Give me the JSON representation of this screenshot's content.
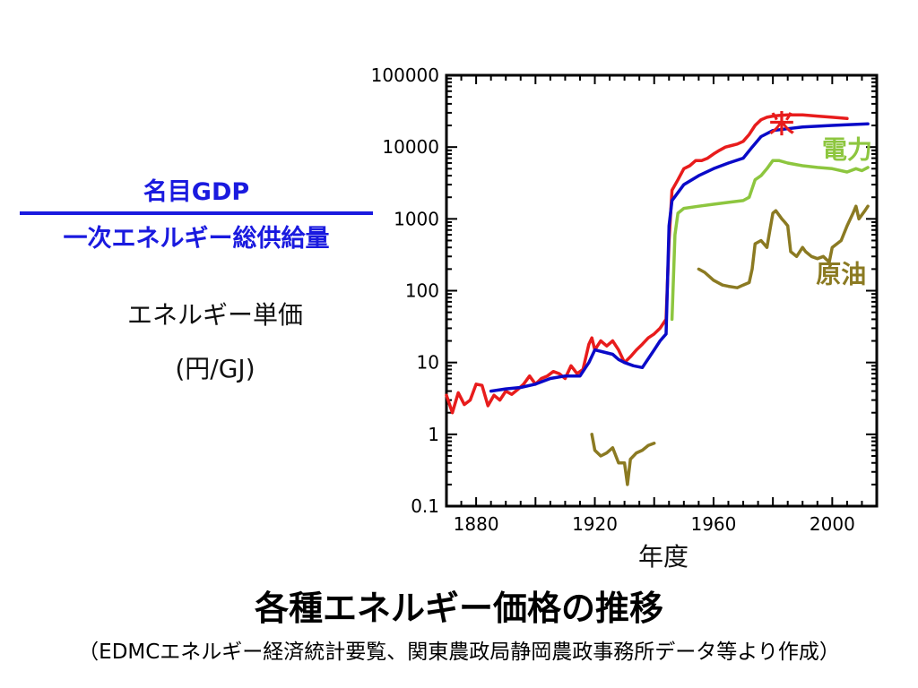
{
  "chart_data": {
    "type": "line",
    "title": "各種エネルギー価格の推移",
    "source_note": "（EDMCエネルギー経済統計要覧、関東農政局静岡農政事務所データ等より作成）",
    "ylabel_fraction": {
      "numerator": "名目GDP",
      "denominator": "一次エネルギー総供給量"
    },
    "ylabel": "エネルギー単価",
    "ylabel_unit": "(円/GJ)",
    "xlabel": "年度",
    "yscale": "log",
    "xlim": [
      1870,
      2015
    ],
    "ylim": [
      0.1,
      100000
    ],
    "x_ticks": [
      1880,
      1920,
      1960,
      2000
    ],
    "y_ticks": [
      0.1,
      1,
      10,
      100,
      1000,
      10000,
      100000
    ],
    "y_tick_labels": [
      "0.1",
      "1",
      "10",
      "100",
      "1000",
      "10000",
      "100000"
    ],
    "series": [
      {
        "name": "米",
        "color": "#e81c1c",
        "points": [
          [
            1870,
            3.5
          ],
          [
            1872,
            2.0
          ],
          [
            1874,
            3.8
          ],
          [
            1876,
            2.6
          ],
          [
            1878,
            3.0
          ],
          [
            1880,
            5.0
          ],
          [
            1882,
            4.8
          ],
          [
            1884,
            2.5
          ],
          [
            1886,
            3.5
          ],
          [
            1888,
            3.0
          ],
          [
            1890,
            4.0
          ],
          [
            1892,
            3.6
          ],
          [
            1894,
            4.2
          ],
          [
            1896,
            5.0
          ],
          [
            1898,
            6.5
          ],
          [
            1900,
            5.0
          ],
          [
            1902,
            6.0
          ],
          [
            1904,
            6.5
          ],
          [
            1906,
            7.5
          ],
          [
            1908,
            7.0
          ],
          [
            1910,
            6.0
          ],
          [
            1912,
            9.0
          ],
          [
            1914,
            7.0
          ],
          [
            1916,
            8.0
          ],
          [
            1918,
            18
          ],
          [
            1919,
            22
          ],
          [
            1920,
            15
          ],
          [
            1922,
            20
          ],
          [
            1924,
            17
          ],
          [
            1926,
            20
          ],
          [
            1928,
            15
          ],
          [
            1930,
            10
          ],
          [
            1932,
            12
          ],
          [
            1934,
            15
          ],
          [
            1936,
            18
          ],
          [
            1938,
            22
          ],
          [
            1940,
            25
          ],
          [
            1942,
            30
          ],
          [
            1944,
            40
          ],
          [
            1945,
            500
          ],
          [
            1946,
            2500
          ],
          [
            1948,
            3500
          ],
          [
            1950,
            5000
          ],
          [
            1952,
            5500
          ],
          [
            1954,
            6500
          ],
          [
            1956,
            6500
          ],
          [
            1958,
            7000
          ],
          [
            1960,
            8000
          ],
          [
            1962,
            9000
          ],
          [
            1964,
            10000
          ],
          [
            1966,
            10500
          ],
          [
            1968,
            11000
          ],
          [
            1970,
            12000
          ],
          [
            1972,
            15000
          ],
          [
            1974,
            20000
          ],
          [
            1976,
            24000
          ],
          [
            1978,
            26000
          ],
          [
            1980,
            27000
          ],
          [
            1982,
            27500
          ],
          [
            1985,
            28000
          ],
          [
            1990,
            28000
          ],
          [
            1995,
            27000
          ],
          [
            2000,
            26000
          ],
          [
            2005,
            25000
          ]
        ]
      },
      {
        "name": "",
        "color": "#0a0ac8",
        "points": [
          [
            1885,
            4.0
          ],
          [
            1890,
            4.3
          ],
          [
            1895,
            4.5
          ],
          [
            1900,
            5.0
          ],
          [
            1905,
            6.0
          ],
          [
            1910,
            6.5
          ],
          [
            1915,
            6.5
          ],
          [
            1918,
            10
          ],
          [
            1920,
            15
          ],
          [
            1923,
            14
          ],
          [
            1926,
            13
          ],
          [
            1928,
            11
          ],
          [
            1930,
            10
          ],
          [
            1933,
            9
          ],
          [
            1936,
            8.5
          ],
          [
            1940,
            15
          ],
          [
            1942,
            20
          ],
          [
            1944,
            25
          ],
          [
            1945,
            800
          ],
          [
            1946,
            1800
          ],
          [
            1950,
            3000
          ],
          [
            1955,
            4000
          ],
          [
            1960,
            5000
          ],
          [
            1965,
            6000
          ],
          [
            1970,
            7000
          ],
          [
            1973,
            10000
          ],
          [
            1976,
            14000
          ],
          [
            1980,
            17000
          ],
          [
            1985,
            18000
          ],
          [
            1990,
            19000
          ],
          [
            1995,
            19500
          ],
          [
            2000,
            20000
          ],
          [
            2005,
            20500
          ],
          [
            2012,
            21000
          ]
        ]
      },
      {
        "name": "電力",
        "color": "#8dc63f",
        "points": [
          [
            1946,
            40
          ],
          [
            1947,
            600
          ],
          [
            1948,
            1200
          ],
          [
            1950,
            1400
          ],
          [
            1955,
            1500
          ],
          [
            1960,
            1600
          ],
          [
            1965,
            1700
          ],
          [
            1970,
            1800
          ],
          [
            1972,
            2000
          ],
          [
            1974,
            3500
          ],
          [
            1976,
            4000
          ],
          [
            1978,
            5000
          ],
          [
            1980,
            6500
          ],
          [
            1982,
            6500
          ],
          [
            1985,
            6000
          ],
          [
            1990,
            5500
          ],
          [
            1995,
            5200
          ],
          [
            2000,
            5000
          ],
          [
            2005,
            4500
          ],
          [
            2008,
            5000
          ],
          [
            2010,
            4700
          ],
          [
            2012,
            5200
          ]
        ]
      },
      {
        "name": "原油",
        "color": "#8b7a22",
        "points": [
          [
            1919,
            1.0
          ],
          [
            1920,
            0.6
          ],
          [
            1922,
            0.5
          ],
          [
            1924,
            0.55
          ],
          [
            1926,
            0.65
          ],
          [
            1928,
            0.4
          ],
          [
            1930,
            0.4
          ],
          [
            1931,
            0.2
          ],
          [
            1932,
            0.45
          ],
          [
            1934,
            0.55
          ],
          [
            1936,
            0.6
          ],
          [
            1938,
            0.7
          ],
          [
            1940,
            0.75
          ]
        ]
      },
      {
        "name": "原油",
        "color": "#8b7a22",
        "points": [
          [
            1955,
            200
          ],
          [
            1957,
            180
          ],
          [
            1960,
            140
          ],
          [
            1963,
            120
          ],
          [
            1965,
            115
          ],
          [
            1968,
            110
          ],
          [
            1970,
            120
          ],
          [
            1972,
            130
          ],
          [
            1973,
            200
          ],
          [
            1974,
            450
          ],
          [
            1976,
            500
          ],
          [
            1978,
            400
          ],
          [
            1979,
            700
          ],
          [
            1980,
            1200
          ],
          [
            1981,
            1300
          ],
          [
            1983,
            1000
          ],
          [
            1984,
            900
          ],
          [
            1985,
            800
          ],
          [
            1986,
            350
          ],
          [
            1988,
            300
          ],
          [
            1990,
            400
          ],
          [
            1991,
            350
          ],
          [
            1993,
            300
          ],
          [
            1995,
            280
          ],
          [
            1997,
            300
          ],
          [
            1999,
            250
          ],
          [
            2000,
            400
          ],
          [
            2003,
            500
          ],
          [
            2005,
            800
          ],
          [
            2007,
            1200
          ],
          [
            2008,
            1500
          ],
          [
            2009,
            1000
          ],
          [
            2011,
            1300
          ],
          [
            2012,
            1500
          ]
        ]
      }
    ],
    "series_labels": [
      {
        "text": "米",
        "color": "#e81c1c",
        "x": 1983,
        "y": 16000
      },
      {
        "text": "電力",
        "color": "#8dc63f",
        "x": 2005,
        "y": 7000
      },
      {
        "text": "原油",
        "color": "#8b7a22",
        "x": 2003,
        "y": 130
      }
    ]
  }
}
